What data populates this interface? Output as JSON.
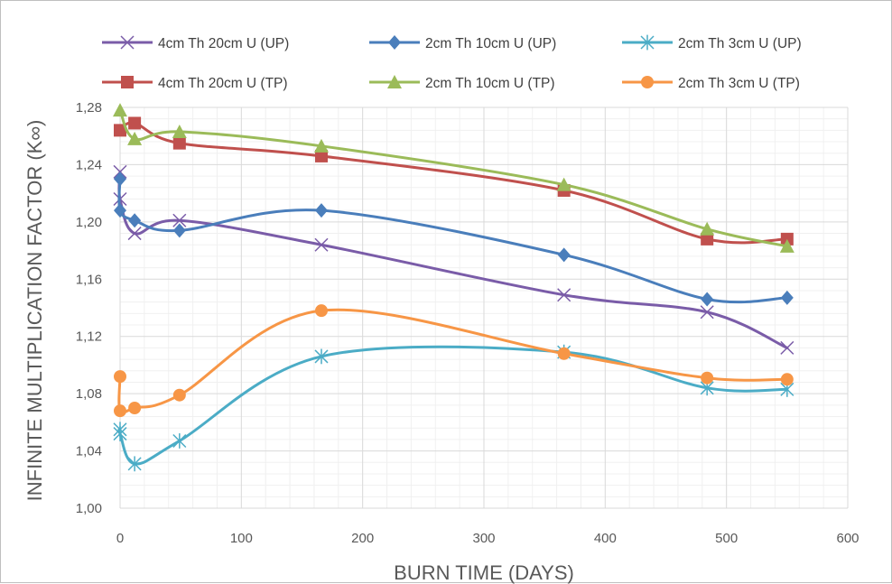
{
  "chart_data": {
    "type": "line",
    "xlabel": "BURN TIME (DAYS)",
    "ylabel": "INFINITE MULTIPLICATION FACTOR (K∞)",
    "xlim": [
      0,
      600
    ],
    "ylim": [
      1.0,
      1.28
    ],
    "x_ticks": [
      "0",
      "100",
      "200",
      "300",
      "400",
      "500",
      "600"
    ],
    "y_ticks": [
      "1,00",
      "1,04",
      "1,08",
      "1,12",
      "1,16",
      "1,20",
      "1,24",
      "1,28"
    ],
    "grid": true,
    "legend_position": "top",
    "series": [
      {
        "name": "4cm Th 20cm U (UP)",
        "color": "#7a5ca8",
        "marker": "x",
        "points": [
          [
            0,
            1.235
          ],
          [
            0,
            1.216
          ],
          [
            12,
            1.192
          ],
          [
            49,
            1.201
          ],
          [
            166,
            1.184
          ],
          [
            366,
            1.149
          ],
          [
            484,
            1.137
          ],
          [
            550,
            1.112
          ]
        ]
      },
      {
        "name": "2cm Th 10cm U (UP)",
        "color": "#4a7ebb",
        "marker": "diamond",
        "points": [
          [
            0,
            1.23
          ],
          [
            0,
            1.208
          ],
          [
            12,
            1.201
          ],
          [
            49,
            1.194
          ],
          [
            166,
            1.208
          ],
          [
            366,
            1.177
          ],
          [
            484,
            1.146
          ],
          [
            550,
            1.147
          ]
        ]
      },
      {
        "name": "2cm Th 3cm U (UP)",
        "color": "#4bacc6",
        "marker": "asterisk",
        "points": [
          [
            0,
            1.055
          ],
          [
            0,
            1.052
          ],
          [
            12,
            1.031
          ],
          [
            49,
            1.047
          ],
          [
            166,
            1.106
          ],
          [
            366,
            1.109
          ],
          [
            484,
            1.084
          ],
          [
            550,
            1.083
          ]
        ]
      },
      {
        "name": "4cm Th 20cm U (TP)",
        "color": "#c0504d",
        "marker": "square",
        "points": [
          [
            0,
            1.264
          ],
          [
            12,
            1.269
          ],
          [
            49,
            1.255
          ],
          [
            166,
            1.246
          ],
          [
            366,
            1.222
          ],
          [
            484,
            1.188
          ],
          [
            550,
            1.188
          ]
        ]
      },
      {
        "name": "2cm Th 10cm U (TP)",
        "color": "#9bbb59",
        "marker": "triangle",
        "points": [
          [
            0,
            1.278
          ],
          [
            12,
            1.258
          ],
          [
            49,
            1.263
          ],
          [
            166,
            1.253
          ],
          [
            366,
            1.226
          ],
          [
            484,
            1.195
          ],
          [
            550,
            1.183
          ]
        ]
      },
      {
        "name": "2cm Th 3cm U (TP)",
        "color": "#f79646",
        "marker": "circle",
        "points": [
          [
            0,
            1.092
          ],
          [
            0,
            1.068
          ],
          [
            12,
            1.07
          ],
          [
            49,
            1.079
          ],
          [
            166,
            1.138
          ],
          [
            366,
            1.108
          ],
          [
            484,
            1.091
          ],
          [
            550,
            1.09
          ]
        ]
      }
    ]
  }
}
